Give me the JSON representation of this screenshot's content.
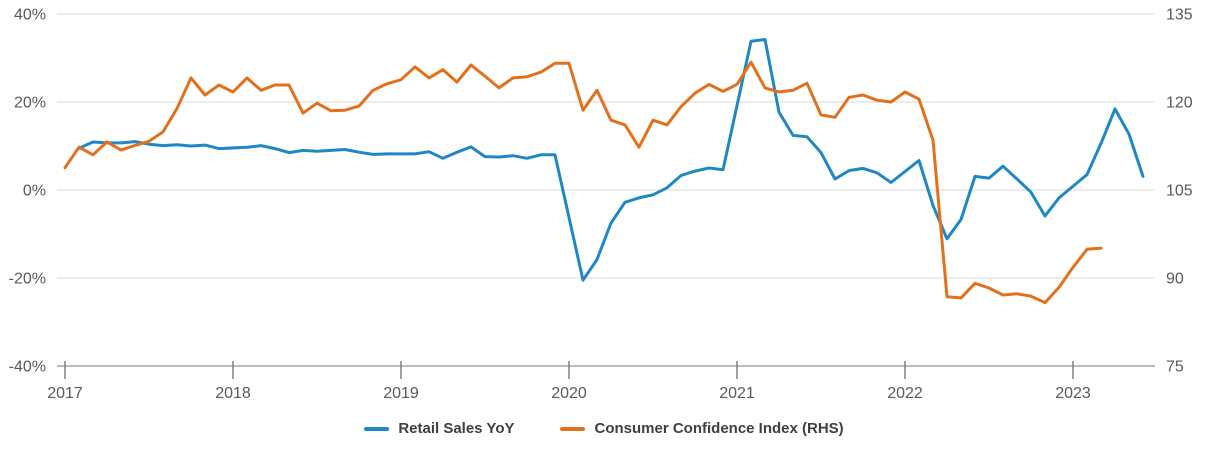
{
  "chart_data": {
    "type": "line",
    "title": "",
    "legend_position": "bottom-center",
    "grid": "horizontal-only",
    "x_axis": {
      "start_month": "2017-01",
      "end_month": "2023-06",
      "ticks": [
        "2017",
        "2018",
        "2019",
        "2020",
        "2021",
        "2022",
        "2023"
      ]
    },
    "y_axis_left": {
      "unit": "%",
      "range": [
        -40,
        40
      ],
      "ticks": [
        "40%",
        "20%",
        "0%",
        "-20%",
        "-40%"
      ]
    },
    "y_axis_right": {
      "range": [
        75,
        135
      ],
      "ticks": [
        "135",
        "120",
        "105",
        "90",
        "75"
      ]
    },
    "colors": {
      "gridline": "#d9d9d9",
      "axis_line": "#a6a6a6",
      "tick_mark": "#808080",
      "tick_label": "#595959",
      "legend_text": "#404040",
      "background": "#ffffff"
    },
    "series": [
      {
        "name": "Retail Sales YoY",
        "axis": "left",
        "color": "#1f88c4",
        "points": [
          [
            "2017-02",
            9.5
          ],
          [
            "2017-03",
            10.9
          ],
          [
            "2017-04",
            10.7
          ],
          [
            "2017-05",
            10.7
          ],
          [
            "2017-06",
            11.0
          ],
          [
            "2017-07",
            10.4
          ],
          [
            "2017-08",
            10.1
          ],
          [
            "2017-09",
            10.3
          ],
          [
            "2017-10",
            10.0
          ],
          [
            "2017-11",
            10.2
          ],
          [
            "2017-12",
            9.4
          ],
          [
            "2018-02",
            9.7
          ],
          [
            "2018-03",
            10.1
          ],
          [
            "2018-04",
            9.4
          ],
          [
            "2018-05",
            8.5
          ],
          [
            "2018-06",
            9.0
          ],
          [
            "2018-07",
            8.8
          ],
          [
            "2018-08",
            9.0
          ],
          [
            "2018-09",
            9.2
          ],
          [
            "2018-10",
            8.6
          ],
          [
            "2018-11",
            8.1
          ],
          [
            "2018-12",
            8.2
          ],
          [
            "2019-02",
            8.2
          ],
          [
            "2019-03",
            8.7
          ],
          [
            "2019-04",
            7.2
          ],
          [
            "2019-05",
            8.6
          ],
          [
            "2019-06",
            9.8
          ],
          [
            "2019-07",
            7.6
          ],
          [
            "2019-08",
            7.5
          ],
          [
            "2019-09",
            7.8
          ],
          [
            "2019-10",
            7.2
          ],
          [
            "2019-11",
            8.0
          ],
          [
            "2019-12",
            8.0
          ],
          [
            "2020-02",
            -20.5
          ],
          [
            "2020-03",
            -15.8
          ],
          [
            "2020-04",
            -7.5
          ],
          [
            "2020-05",
            -2.8
          ],
          [
            "2020-06",
            -1.8
          ],
          [
            "2020-07",
            -1.1
          ],
          [
            "2020-08",
            0.5
          ],
          [
            "2020-09",
            3.3
          ],
          [
            "2020-10",
            4.3
          ],
          [
            "2020-11",
            5.0
          ],
          [
            "2020-12",
            4.6
          ],
          [
            "2021-02",
            33.8
          ],
          [
            "2021-03",
            34.2
          ],
          [
            "2021-04",
            17.7
          ],
          [
            "2021-05",
            12.4
          ],
          [
            "2021-06",
            12.1
          ],
          [
            "2021-07",
            8.5
          ],
          [
            "2021-08",
            2.5
          ],
          [
            "2021-09",
            4.4
          ],
          [
            "2021-10",
            4.9
          ],
          [
            "2021-11",
            3.9
          ],
          [
            "2021-12",
            1.7
          ],
          [
            "2022-02",
            6.7
          ],
          [
            "2022-03",
            -3.5
          ],
          [
            "2022-04",
            -11.1
          ],
          [
            "2022-05",
            -6.7
          ],
          [
            "2022-06",
            3.1
          ],
          [
            "2022-07",
            2.7
          ],
          [
            "2022-08",
            5.4
          ],
          [
            "2022-09",
            2.5
          ],
          [
            "2022-10",
            -0.5
          ],
          [
            "2022-11",
            -5.9
          ],
          [
            "2022-12",
            -1.8
          ],
          [
            "2023-02",
            3.5
          ],
          [
            "2023-03",
            10.6
          ],
          [
            "2023-04",
            18.4
          ],
          [
            "2023-05",
            12.7
          ],
          [
            "2023-06",
            3.1
          ]
        ]
      },
      {
        "name": "Consumer Confidence Index (RHS)",
        "axis": "right",
        "color": "#e2711d",
        "points": [
          [
            "2017-01",
            108.8
          ],
          [
            "2017-02",
            112.3
          ],
          [
            "2017-03",
            111.0
          ],
          [
            "2017-04",
            113.2
          ],
          [
            "2017-05",
            111.8
          ],
          [
            "2017-06",
            112.6
          ],
          [
            "2017-07",
            113.3
          ],
          [
            "2017-08",
            114.9
          ],
          [
            "2017-09",
            118.9
          ],
          [
            "2017-10",
            124.1
          ],
          [
            "2017-11",
            121.2
          ],
          [
            "2017-12",
            122.9
          ],
          [
            "2018-01",
            121.7
          ],
          [
            "2018-02",
            124.1
          ],
          [
            "2018-03",
            122.0
          ],
          [
            "2018-04",
            122.9
          ],
          [
            "2018-05",
            122.9
          ],
          [
            "2018-06",
            118.1
          ],
          [
            "2018-07",
            119.8
          ],
          [
            "2018-08",
            118.5
          ],
          [
            "2018-09",
            118.6
          ],
          [
            "2018-10",
            119.3
          ],
          [
            "2018-11",
            122.0
          ],
          [
            "2018-12",
            123.1
          ],
          [
            "2019-01",
            123.8
          ],
          [
            "2019-02",
            126.0
          ],
          [
            "2019-03",
            124.1
          ],
          [
            "2019-04",
            125.5
          ],
          [
            "2019-05",
            123.4
          ],
          [
            "2019-06",
            126.3
          ],
          [
            "2019-07",
            124.4
          ],
          [
            "2019-08",
            122.4
          ],
          [
            "2019-09",
            124.1
          ],
          [
            "2019-10",
            124.3
          ],
          [
            "2019-11",
            125.1
          ],
          [
            "2019-12",
            126.6
          ],
          [
            "2020-01",
            126.6
          ],
          [
            "2020-02",
            118.6
          ],
          [
            "2020-03",
            122.0
          ],
          [
            "2020-04",
            116.9
          ],
          [
            "2020-05",
            116.1
          ],
          [
            "2020-06",
            112.3
          ],
          [
            "2020-07",
            116.9
          ],
          [
            "2020-08",
            116.1
          ],
          [
            "2020-09",
            119.2
          ],
          [
            "2020-10",
            121.5
          ],
          [
            "2020-11",
            123.0
          ],
          [
            "2020-12",
            121.8
          ],
          [
            "2021-01",
            123.0
          ],
          [
            "2021-02",
            126.8
          ],
          [
            "2021-03",
            122.4
          ],
          [
            "2021-04",
            121.7
          ],
          [
            "2021-05",
            122.0
          ],
          [
            "2021-06",
            123.2
          ],
          [
            "2021-07",
            117.8
          ],
          [
            "2021-08",
            117.4
          ],
          [
            "2021-09",
            120.8
          ],
          [
            "2021-10",
            121.2
          ],
          [
            "2021-11",
            120.3
          ],
          [
            "2021-12",
            120.0
          ],
          [
            "2022-01",
            121.7
          ],
          [
            "2022-02",
            120.5
          ],
          [
            "2022-03",
            113.5
          ],
          [
            "2022-04",
            86.8
          ],
          [
            "2022-05",
            86.6
          ],
          [
            "2022-06",
            89.1
          ],
          [
            "2022-07",
            88.3
          ],
          [
            "2022-08",
            87.1
          ],
          [
            "2022-09",
            87.3
          ],
          [
            "2022-10",
            86.9
          ],
          [
            "2022-11",
            85.8
          ],
          [
            "2022-12",
            88.4
          ],
          [
            "2023-01",
            91.8
          ],
          [
            "2023-02",
            94.9
          ],
          [
            "2023-03",
            95.1
          ]
        ]
      }
    ]
  }
}
